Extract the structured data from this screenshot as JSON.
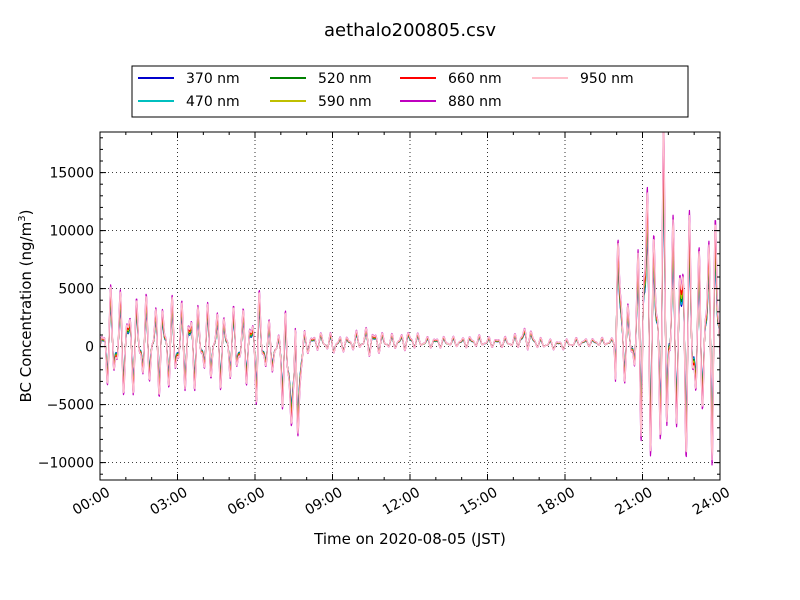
{
  "chart_data": {
    "type": "line",
    "title": "aethalo200805.csv",
    "xlabel": "Time on 2020-08-05 (JST)",
    "ylabel": {
      "main": "BC Concentration (ng/m",
      "superscript": "3",
      "close": ")"
    },
    "x_ticks": [
      "00:00",
      "03:00",
      "06:00",
      "09:00",
      "12:00",
      "15:00",
      "18:00",
      "21:00",
      "24:00"
    ],
    "xlim": [
      0,
      24
    ],
    "y_ticks": [
      "−10000",
      "−5000",
      "0",
      "5000",
      "10000",
      "15000"
    ],
    "ylim": [
      -11500,
      18500
    ],
    "grid": true,
    "legend_position": "top",
    "series": [
      {
        "name": "370 nm",
        "color": "#0000cc"
      },
      {
        "name": "470 nm",
        "color": "#00bfbf"
      },
      {
        "name": "520 nm",
        "color": "#008000"
      },
      {
        "name": "590 nm",
        "color": "#bfbf00"
      },
      {
        "name": "660 nm",
        "color": "#ff0000"
      },
      {
        "name": "880 nm",
        "color": "#bf00bf"
      },
      {
        "name": "950 nm",
        "color": "#ffc0cb"
      }
    ],
    "envelope_880nm": {
      "x": [
        0.0,
        0.25,
        0.5,
        1.0,
        1.5,
        2.0,
        2.5,
        3.0,
        3.5,
        4.0,
        4.5,
        5.0,
        5.5,
        6.0,
        6.1,
        6.3,
        6.6,
        7.0,
        7.2,
        7.5,
        7.6,
        7.8,
        8.0,
        8.5,
        9.0,
        9.5,
        10.0,
        10.5,
        11.0,
        11.5,
        12.0,
        12.5,
        13.0,
        13.5,
        14.0,
        14.5,
        15.0,
        15.5,
        16.0,
        16.5,
        17.0,
        17.5,
        18.0,
        18.5,
        19.0,
        19.5,
        19.9,
        20.0,
        20.2,
        20.5,
        20.8,
        21.0,
        21.2,
        21.5,
        21.8,
        22.0,
        22.3,
        22.6,
        23.0,
        23.3,
        23.6,
        24.0
      ],
      "amp": [
        300,
        4500,
        5200,
        4800,
        4500,
        4200,
        4800,
        4000,
        4500,
        3500,
        4000,
        3500,
        3500,
        4000,
        6800,
        3000,
        2500,
        2000,
        9800,
        1500,
        10000,
        3000,
        1000,
        800,
        1000,
        700,
        1000,
        1500,
        800,
        700,
        1000,
        500,
        600,
        500,
        500,
        600,
        500,
        500,
        600,
        1200,
        500,
        500,
        500,
        400,
        400,
        400,
        400,
        13000,
        5000,
        3000,
        6000,
        17000,
        15000,
        9000,
        17000,
        16500,
        8000,
        13000,
        10000,
        7000,
        12000,
        13000
      ],
      "offset": [
        0,
        500,
        500,
        300,
        300,
        200,
        200,
        200,
        200,
        200,
        100,
        100,
        100,
        100,
        200,
        0,
        -300,
        -500,
        -3000,
        -4000,
        -5000,
        -1000,
        300,
        500,
        200,
        300,
        500,
        500,
        400,
        400,
        600,
        400,
        400,
        400,
        400,
        500,
        400,
        400,
        400,
        900,
        300,
        200,
        200,
        400,
        400,
        400,
        400,
        6000,
        1000,
        500,
        1000,
        4000,
        4000,
        2000,
        3000,
        3000,
        1000,
        2000,
        1000,
        500,
        2000,
        2000
      ]
    }
  }
}
